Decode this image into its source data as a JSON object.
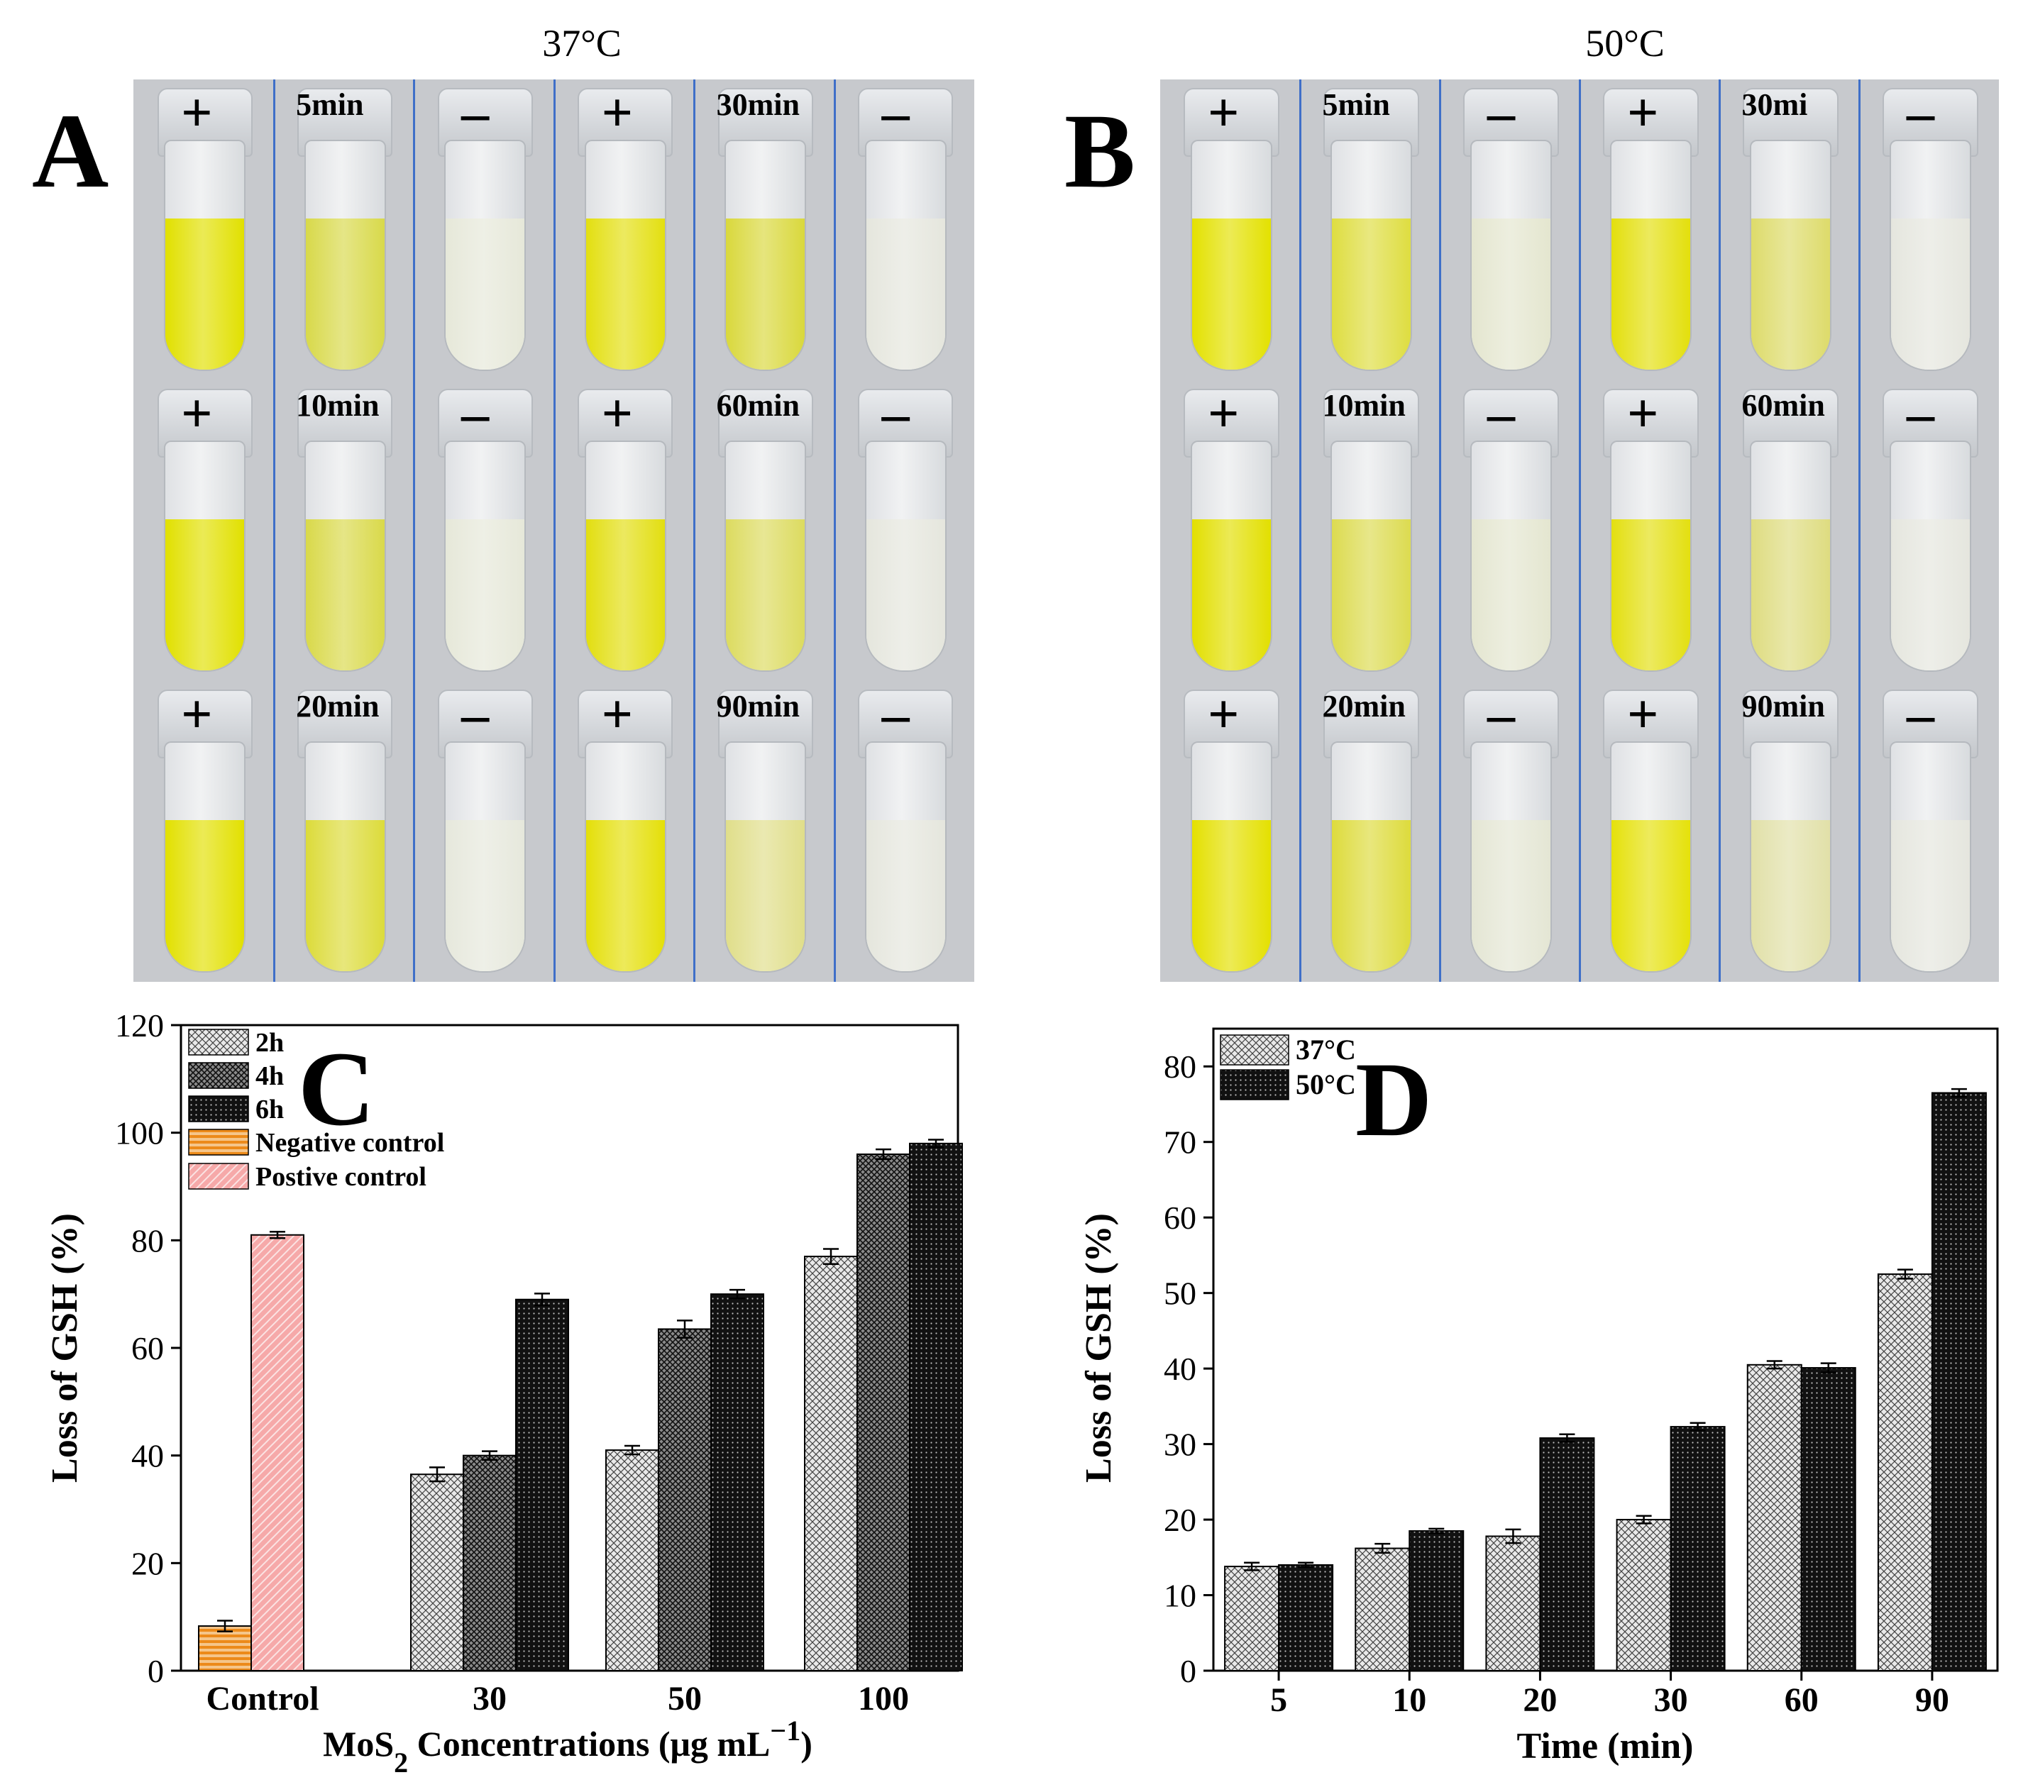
{
  "panelA": {
    "letter": "A",
    "title": "37°C",
    "rows": [
      [
        {
          "sign": "+",
          "color": "#e1e000"
        },
        {
          "label": "5min",
          "color": "#d8d94a"
        },
        {
          "sign": "–",
          "color": "#e6e8d9"
        },
        {
          "sign": "+",
          "color": "#e3df10"
        },
        {
          "label": "30min",
          "color": "#d9d83c"
        },
        {
          "sign": "–",
          "color": "#e5e6dd"
        }
      ],
      [
        {
          "sign": "+",
          "color": "#e1e000"
        },
        {
          "label": "10min",
          "color": "#d9d94a"
        },
        {
          "sign": "–",
          "color": "#e6e8d9"
        },
        {
          "sign": "+",
          "color": "#e2de10"
        },
        {
          "label": "60min",
          "color": "#dcdb5f"
        },
        {
          "sign": "–",
          "color": "#e5e6dd"
        }
      ],
      [
        {
          "sign": "+",
          "color": "#e2e000"
        },
        {
          "label": "20min",
          "color": "#dcdb3a"
        },
        {
          "sign": "–",
          "color": "#e6e8dc"
        },
        {
          "sign": "+",
          "color": "#e4df08"
        },
        {
          "label": "90min",
          "color": "#e0de8a"
        },
        {
          "sign": "–",
          "color": "#e5e6dd"
        }
      ]
    ]
  },
  "panelB": {
    "letter": "B",
    "title": "50°C",
    "rows": [
      [
        {
          "sign": "+",
          "color": "#e3e100"
        },
        {
          "label": "5min",
          "color": "#dedd40"
        },
        {
          "sign": "–",
          "color": "#e4e6cf"
        },
        {
          "sign": "+",
          "color": "#e3df0c"
        },
        {
          "label": "30mi",
          "color": "#dddb6a"
        },
        {
          "sign": "–",
          "color": "#e5e6de"
        }
      ],
      [
        {
          "sign": "+",
          "color": "#e2df00"
        },
        {
          "label": "10min",
          "color": "#dcdb50"
        },
        {
          "sign": "–",
          "color": "#e4e6d0"
        },
        {
          "sign": "+",
          "color": "#e3df10"
        },
        {
          "label": "60min",
          "color": "#dedc80"
        },
        {
          "sign": "–",
          "color": "#e5e6de"
        }
      ],
      [
        {
          "sign": "+",
          "color": "#e4e000"
        },
        {
          "label": "20min",
          "color": "#dddb3c"
        },
        {
          "sign": "–",
          "color": "#e4e6d4"
        },
        {
          "sign": "+",
          "color": "#e5e10a"
        },
        {
          "label": "90min",
          "color": "#e1e0a8"
        },
        {
          "sign": "–",
          "color": "#e5e6de"
        }
      ]
    ]
  },
  "chart_data": [
    {
      "panel": "C",
      "type": "bar",
      "xlabel_main": "MoS",
      "xlabel_sub": "2",
      "xlabel_rest": " Concentrations (μg mL",
      "xlabel_sup": "−1",
      "xlabel_end": ")",
      "ylabel": "Loss of GSH (%)",
      "ylim": [
        0,
        120
      ],
      "yticks": [
        "0",
        "20",
        "40",
        "60",
        "80",
        "100",
        "120"
      ],
      "categories": [
        "Control",
        "30",
        "50",
        "100"
      ],
      "series": [
        {
          "name": "2h",
          "pattern": "crosshatch-light",
          "values": [
            null,
            36.5,
            41.0,
            77.0
          ],
          "errors": [
            null,
            1.3,
            0.8,
            1.4
          ]
        },
        {
          "name": "4h",
          "pattern": "crosshatch-dark",
          "values": [
            null,
            40.0,
            63.5,
            96.0
          ],
          "errors": [
            null,
            0.8,
            1.6,
            0.9
          ]
        },
        {
          "name": "6h",
          "pattern": "dots-dark",
          "values": [
            null,
            69.0,
            70.0,
            98.0
          ],
          "errors": [
            null,
            1.1,
            0.8,
            0.7
          ]
        },
        {
          "name": "Negative control",
          "pattern": "orange-stripes",
          "values": [
            8.3,
            null,
            null,
            null
          ],
          "errors": [
            1.0,
            null,
            null,
            null
          ]
        },
        {
          "name": "Postive control",
          "pattern": "pink-diagonal",
          "values": [
            81.0,
            null,
            null,
            null
          ],
          "errors": [
            0.6,
            null,
            null,
            null
          ]
        }
      ]
    },
    {
      "panel": "D",
      "type": "bar",
      "xlabel": "Time (min)",
      "ylabel": "Loss of GSH (%)",
      "ylim": [
        0,
        85
      ],
      "yticks": [
        "0",
        "10",
        "20",
        "30",
        "40",
        "50",
        "60",
        "70",
        "80"
      ],
      "categories": [
        "5",
        "10",
        "20",
        "30",
        "60",
        "90"
      ],
      "series": [
        {
          "name": "37°C",
          "pattern": "crosshatch-light",
          "values": [
            13.8,
            16.2,
            17.8,
            20.0,
            40.5,
            52.5
          ],
          "errors": [
            0.5,
            0.6,
            0.9,
            0.5,
            0.5,
            0.6
          ]
        },
        {
          "name": "50°C",
          "pattern": "dots-dark",
          "values": [
            14.0,
            18.5,
            30.8,
            32.3,
            40.1,
            76.5
          ],
          "errors": [
            0.3,
            0.3,
            0.5,
            0.5,
            0.6,
            0.5
          ]
        }
      ]
    }
  ]
}
